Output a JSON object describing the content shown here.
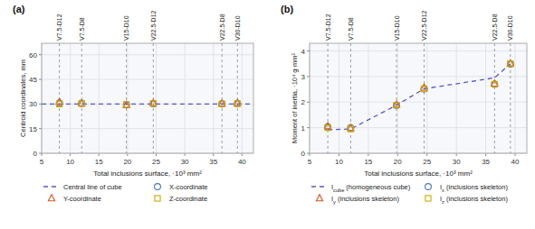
{
  "chart_data": [
    {
      "type": "scatter",
      "title": "(a)",
      "xlabel": "Total inclusions surface,  ·10³ mm²",
      "ylabel": "Centroid coordinates, mm",
      "x": [
        8.1,
        12.0,
        19.8,
        24.5,
        36.5,
        39.2
      ],
      "series": [
        {
          "name": "Central line of cube",
          "type": "hline",
          "line_style": "dashed",
          "color": "#5555cc",
          "value": 30.0
        },
        {
          "name": "X-coordinate",
          "marker": "circle",
          "color": "#4477bb",
          "values": [
            30.5,
            30.5,
            29.5,
            30.2,
            30.1,
            30.3
          ]
        },
        {
          "name": "Y-coordinate",
          "marker": "triangle",
          "color": "#cc5522",
          "values": [
            31.2,
            30.3,
            29.3,
            30.5,
            30.2,
            30.5
          ]
        },
        {
          "name": "Z-coordinate",
          "marker": "square",
          "color": "#ccaa00",
          "values": [
            30.0,
            30.2,
            29.7,
            30.3,
            30.1,
            30.2
          ]
        }
      ],
      "annotations": [
        {
          "x": 8.1,
          "text": "V7.5-D12"
        },
        {
          "x": 12.0,
          "text": "V7.5-D8"
        },
        {
          "x": 19.8,
          "text": "V15-D10"
        },
        {
          "x": 24.5,
          "text": "V22.5-D12"
        },
        {
          "x": 36.5,
          "text": "V22.5-D8"
        },
        {
          "x": 39.2,
          "text": "V30-D10"
        }
      ],
      "xlim": [
        5,
        42
      ],
      "xticks": [
        5,
        10,
        15,
        20,
        25,
        30,
        35,
        40
      ],
      "ylim": [
        0,
        67
      ],
      "yticks": [
        0,
        15,
        30,
        45,
        60
      ],
      "grid": true,
      "legend": "bottom"
    },
    {
      "type": "scatter",
      "title": "(b)",
      "xlabel": "Total inclusions surface,  ·10³ mm²",
      "ylabel": "Moment of inertia, ·10⁴ g·mm²",
      "x": [
        8.1,
        12.0,
        19.8,
        24.5,
        36.5,
        39.2
      ],
      "series": [
        {
          "name": "Icube (homogeneous cube)",
          "type": "line",
          "line_style": "dashed",
          "color": "#5555cc",
          "values": [
            0.92,
            0.95,
            1.88,
            2.52,
            2.95,
            3.5
          ]
        },
        {
          "name": "Ix (inclusions skeleton)",
          "marker": "circle",
          "color": "#4477bb",
          "values": [
            1.03,
            1.0,
            1.88,
            2.52,
            2.7,
            3.49
          ]
        },
        {
          "name": "Iy (inclusions skeleton)",
          "marker": "triangle",
          "color": "#cc5522",
          "values": [
            1.05,
            0.98,
            1.9,
            2.56,
            2.72,
            3.51
          ]
        },
        {
          "name": "Iz (inclusions skeleton)",
          "marker": "square",
          "color": "#ccaa00",
          "values": [
            1.0,
            0.95,
            1.88,
            2.52,
            2.7,
            3.5
          ]
        }
      ],
      "annotations": [
        {
          "x": 8.1,
          "text": "V7.5-D12"
        },
        {
          "x": 12.0,
          "text": "V7.5-D8"
        },
        {
          "x": 19.8,
          "text": "V15-D10"
        },
        {
          "x": 24.5,
          "text": "V22.5-D12"
        },
        {
          "x": 36.5,
          "text": "V22.5-D8"
        },
        {
          "x": 39.2,
          "text": "V30-D10"
        }
      ],
      "xlim": [
        5,
        42
      ],
      "xticks": [
        5,
        10,
        15,
        20,
        25,
        30,
        35,
        40
      ],
      "ylim": [
        0,
        4.3
      ],
      "yticks": [
        0,
        1,
        2,
        3,
        4
      ],
      "grid": true,
      "legend": "bottom"
    }
  ]
}
